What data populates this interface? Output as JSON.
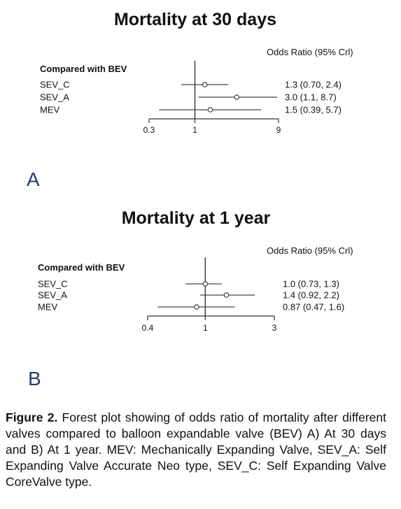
{
  "chart_data": [
    {
      "type": "forest",
      "panel_label": "A",
      "title": "Mortality at 30 days",
      "row_header": "Compared with BEV",
      "estimate_header": "Odds Ratio (95% Crl)",
      "scale": "log",
      "xlim": [
        0.3,
        9
      ],
      "ticks": [
        {
          "value": 0.3,
          "label": "0.3"
        },
        {
          "value": 1,
          "label": "1"
        },
        {
          "value": 9,
          "label": "9"
        }
      ],
      "reference": 1,
      "rows": [
        {
          "label": "SEV_C",
          "or": 1.3,
          "lo": 0.7,
          "hi": 2.4,
          "text": "1.3 (0.70, 2.4)"
        },
        {
          "label": "SEV_A",
          "or": 3.0,
          "lo": 1.1,
          "hi": 8.7,
          "text": "3.0 (1.1, 8.7)"
        },
        {
          "label": "MEV",
          "or": 1.5,
          "lo": 0.39,
          "hi": 5.7,
          "text": "1.5 (0.39, 5.7)"
        }
      ]
    },
    {
      "type": "forest",
      "panel_label": "B",
      "title": "Mortality at 1 year",
      "row_header": "Compared with BEV",
      "estimate_header": "Odds Ratio (95% Crl)",
      "scale": "log",
      "xlim": [
        0.4,
        3
      ],
      "ticks": [
        {
          "value": 0.4,
          "label": "0.4"
        },
        {
          "value": 1,
          "label": "1"
        },
        {
          "value": 3,
          "label": "3"
        }
      ],
      "reference": 1,
      "rows": [
        {
          "label": "SEV_C",
          "or": 1.0,
          "lo": 0.73,
          "hi": 1.3,
          "text": "1.0 (0.73, 1.3)"
        },
        {
          "label": "SEV_A",
          "or": 1.4,
          "lo": 0.92,
          "hi": 2.2,
          "text": "1.4 (0.92, 2.2)"
        },
        {
          "label": "MEV",
          "or": 0.87,
          "lo": 0.47,
          "hi": 1.6,
          "text": "0.87 (0.47, 1.6)"
        }
      ]
    }
  ],
  "caption": {
    "label": "Figure 2.",
    "text": " Forest plot showing of odds ratio of mortality after different valves compared to balloon expandable valve (BEV) A) At 30 days and B) At 1 year. MEV: Mechanically Expanding Valve, SEV_A: Self Expanding Valve Accurate Neo type, SEV_C: Self Expanding Valve CoreValve type."
  }
}
